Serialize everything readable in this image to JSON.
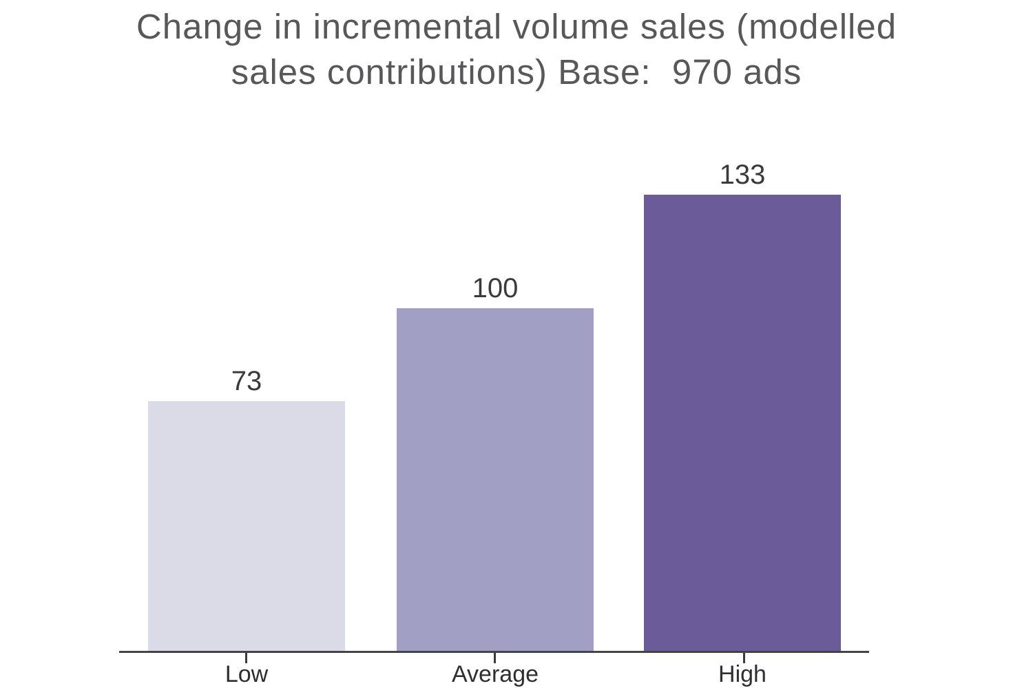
{
  "chart_data": {
    "type": "bar",
    "title": "Change in incremental volume sales (modelled sales contributions) Base:  970 ads",
    "title_lines": [
      "Change in incremental volume sales (modelled",
      "sales contributions) Base:  970 ads"
    ],
    "categories": [
      "Low",
      "Average",
      "High"
    ],
    "values": [
      73,
      100,
      133
    ],
    "value_labels": [
      "73",
      "100",
      "133"
    ],
    "bar_colors": [
      "#dbdbe8",
      "#a29fc4",
      "#6c5b99"
    ],
    "xlabel": "",
    "ylabel": "",
    "ylim": [
      0,
      145
    ],
    "grid": false,
    "legend": false,
    "background_color": "#ffffff",
    "title_color": "#58585a",
    "label_color": "#3a3a3a",
    "axis_color": "#444447",
    "value_labels_position": "above-bars",
    "y_axis_visible": false
  }
}
